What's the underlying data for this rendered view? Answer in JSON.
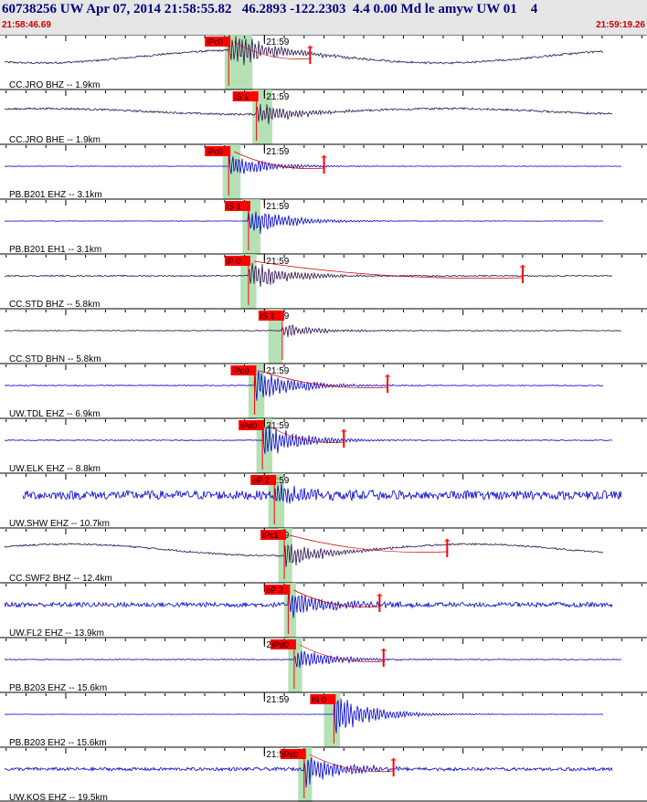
{
  "header": {
    "title": "60738256 UW Apr 07, 2014 21:58:55.82   46.2893 -122.2303  4.4 0.00 Md le amyw UW 01    4",
    "start_time": "21:58:46.69",
    "end_time": "21:59:19.26"
  },
  "chart_data": {
    "type": "line",
    "title": "",
    "xlabel": "",
    "ylabel": "",
    "x_range_seconds": [
      46.69,
      79.26
    ],
    "minute_tick_label": "21:59",
    "minute_tick_seconds": 60.0,
    "tick_interval_seconds": 1,
    "series": [
      {
        "label": "CC.JRO BHZ -- 1.9km",
        "color": "#2b0f4a",
        "pick_label": "iPc0",
        "pick_seconds": 58.2,
        "green_band_seconds": [
          58.0,
          59.4
        ],
        "coda_end_seconds": 62.3,
        "noise": 0.12,
        "slow": 0.55,
        "event_amp": 1.0
      },
      {
        "label": "CC.JRO BHE -- 1.9km",
        "color": "#2b0f4a",
        "pick_label": "iS 1",
        "pick_seconds": 59.6,
        "green_band_seconds": [
          59.4,
          60.4
        ],
        "coda_end_seconds": null,
        "noise": 0.12,
        "slow": 0.25,
        "event_amp": 0.6
      },
      {
        "label": "PB.B201 EHZ -- 3.1km",
        "color": "#0000cc",
        "pick_label": "iPc0",
        "pick_seconds": 58.2,
        "green_band_seconds": [
          57.9,
          58.8
        ],
        "coda_end_seconds": 63.0,
        "noise": 0.03,
        "slow": 0.0,
        "event_amp": 0.6
      },
      {
        "label": "PB.B201 EH1 -- 3.1km",
        "color": "#0000cc",
        "pick_label": "iS 1",
        "pick_seconds": 59.2,
        "green_band_seconds": [
          58.9,
          59.8
        ],
        "coda_end_seconds": null,
        "noise": 0.03,
        "slow": 0.0,
        "event_amp": 0.8
      },
      {
        "label": "CC.STD BHZ -- 5.8km",
        "color": "#2b0f4a",
        "pick_label": "iP 0",
        "pick_seconds": 59.2,
        "green_band_seconds": [
          58.8,
          59.6
        ],
        "coda_end_seconds": 73.0,
        "noise": 0.08,
        "slow": 0.0,
        "event_amp": 0.8
      },
      {
        "label": "CC.STD BHN -- 5.8km",
        "color": "#2b0f4a",
        "pick_label": "iS 1",
        "pick_seconds": 60.9,
        "green_band_seconds": [
          60.2,
          60.9
        ],
        "coda_end_seconds": null,
        "noise": 0.05,
        "slow": 0.0,
        "event_amp": 0.35
      },
      {
        "label": "UW.TDL EHZ -- 6.9km",
        "color": "#0000cc",
        "pick_label": "iPd0",
        "pick_seconds": 59.5,
        "green_band_seconds": [
          59.2,
          60.0
        ],
        "coda_end_seconds": 66.2,
        "noise": 0.05,
        "slow": 0.0,
        "event_amp": 0.9
      },
      {
        "label": "UW.ELK EHZ -- 8.8km",
        "color": "#0000cc",
        "pick_label": "iPd0",
        "pick_seconds": 59.9,
        "green_band_seconds": [
          59.6,
          60.4
        ],
        "coda_end_seconds": 64.0,
        "noise": 0.05,
        "slow": 0.0,
        "event_amp": 0.9
      },
      {
        "label": "UW.SHW EHZ -- 10.7km",
        "color": "#0000cc",
        "pick_label": "eP 2",
        "pick_seconds": 60.5,
        "green_band_seconds": [
          60.2,
          61.0
        ],
        "coda_end_seconds": null,
        "noise": 0.55,
        "slow": 0.0,
        "event_amp": 0.6
      },
      {
        "label": "CC.SWF2 BHZ -- 12.4km",
        "color": "#2b0f4a",
        "pick_label": "iPc1",
        "pick_seconds": 61.0,
        "green_band_seconds": [
          60.7,
          61.4
        ],
        "coda_end_seconds": 69.2,
        "noise": 0.1,
        "slow": 0.5,
        "event_amp": 0.7
      },
      {
        "label": "UW.FL2 EHZ -- 13.9km",
        "color": "#0000cc",
        "pick_label": "eP 2",
        "pick_seconds": 61.2,
        "green_band_seconds": [
          61.0,
          61.6
        ],
        "coda_end_seconds": 65.8,
        "noise": 0.3,
        "slow": 0.0,
        "event_amp": 0.7
      },
      {
        "label": "PB.B203 EHZ -- 15.6km",
        "color": "#0000cc",
        "pick_label": "iPd0",
        "pick_seconds": 61.5,
        "green_band_seconds": [
          61.2,
          61.9
        ],
        "coda_end_seconds": 66.0,
        "noise": 0.05,
        "slow": 0.0,
        "event_amp": 0.6
      },
      {
        "label": "PB.B203 EH2 -- 15.6km",
        "color": "#0000cc",
        "pick_label": "iS 0",
        "pick_seconds": 63.5,
        "green_band_seconds": [
          63.0,
          63.8
        ],
        "coda_end_seconds": null,
        "noise": 0.02,
        "slow": 0.0,
        "event_amp": 1.0
      },
      {
        "label": "UW.KOS EHZ -- 19.5km",
        "color": "#0000cc",
        "pick_label": "iPc0",
        "pick_seconds": 62.0,
        "green_band_seconds": [
          61.7,
          62.4
        ],
        "coda_end_seconds": 66.5,
        "noise": 0.2,
        "slow": 0.0,
        "event_amp": 0.8
      }
    ]
  }
}
